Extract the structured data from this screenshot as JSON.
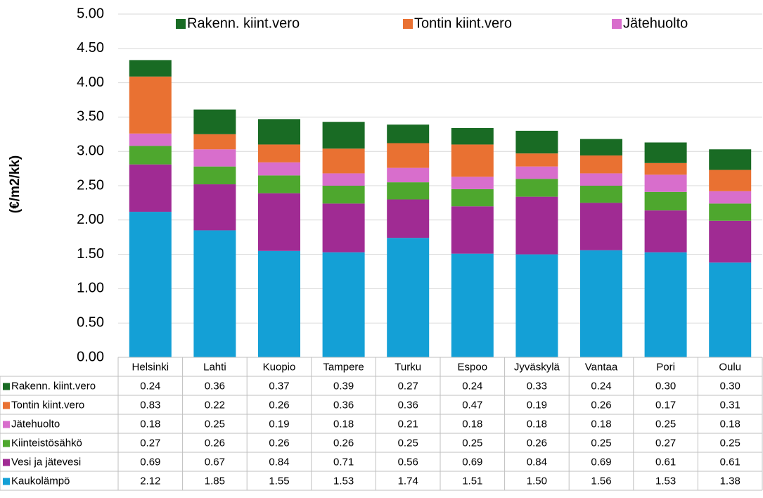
{
  "chart_data": {
    "type": "bar",
    "stacked": true,
    "y_axis_label": "(€/m2/kk)",
    "categories": [
      "Helsinki",
      "Lahti",
      "Kuopio",
      "Tampere",
      "Turku",
      "Espoo",
      "Jyväskylä",
      "Vantaa",
      "Pori",
      "Oulu"
    ],
    "series": [
      {
        "name": "Kaukolämpö",
        "color": "#14a0d6",
        "values": [
          2.12,
          1.85,
          1.55,
          1.53,
          1.74,
          1.51,
          1.5,
          1.56,
          1.53,
          1.38
        ],
        "value_labels": [
          "2.12",
          "1.85",
          "1.55",
          "1.53",
          "1.74",
          "1.51",
          "1.50",
          "1.56",
          "1.53",
          "1.38"
        ]
      },
      {
        "name": "Vesi ja jätevesi",
        "color": "#a02b93",
        "values": [
          0.69,
          0.67,
          0.84,
          0.71,
          0.56,
          0.69,
          0.84,
          0.69,
          0.61,
          0.61
        ],
        "value_labels": [
          "0.69",
          "0.67",
          "0.84",
          "0.71",
          "0.56",
          "0.69",
          "0.84",
          "0.69",
          "0.61",
          "0.61"
        ]
      },
      {
        "name": "Kiinteistösähkö",
        "color": "#4ea72e",
        "values": [
          0.27,
          0.26,
          0.26,
          0.26,
          0.25,
          0.25,
          0.26,
          0.25,
          0.27,
          0.25
        ],
        "value_labels": [
          "0.27",
          "0.26",
          "0.26",
          "0.26",
          "0.25",
          "0.25",
          "0.26",
          "0.25",
          "0.27",
          "0.25"
        ]
      },
      {
        "name": "Jätehuolto",
        "color": "#d86ecc",
        "values": [
          0.18,
          0.25,
          0.19,
          0.18,
          0.21,
          0.18,
          0.18,
          0.18,
          0.25,
          0.18
        ],
        "value_labels": [
          "0.18",
          "0.25",
          "0.19",
          "0.18",
          "0.21",
          "0.18",
          "0.18",
          "0.18",
          "0.25",
          "0.18"
        ]
      },
      {
        "name": "Tontin kiint.vero",
        "color": "#e97132",
        "values": [
          0.83,
          0.22,
          0.26,
          0.36,
          0.36,
          0.47,
          0.19,
          0.26,
          0.17,
          0.31
        ],
        "value_labels": [
          "0.83",
          "0.22",
          "0.26",
          "0.36",
          "0.36",
          "0.47",
          "0.19",
          "0.26",
          "0.17",
          "0.31"
        ]
      },
      {
        "name": "Rakenn. kiint.vero",
        "color": "#196b24",
        "values": [
          0.24,
          0.36,
          0.37,
          0.39,
          0.27,
          0.24,
          0.33,
          0.24,
          0.3,
          0.3
        ],
        "value_labels": [
          "0.24",
          "0.36",
          "0.37",
          "0.39",
          "0.27",
          "0.24",
          "0.33",
          "0.24",
          "0.30",
          "0.30"
        ]
      }
    ],
    "ylim": [
      0,
      5
    ],
    "yticks": [
      {
        "value": 0,
        "label": "0.00"
      },
      {
        "value": 0.5,
        "label": "0.50"
      },
      {
        "value": 1,
        "label": "1.00"
      },
      {
        "value": 1.5,
        "label": "1.50"
      },
      {
        "value": 2,
        "label": "2.00"
      },
      {
        "value": 2.5,
        "label": "2.50"
      },
      {
        "value": 3,
        "label": "3.00"
      },
      {
        "value": 3.5,
        "label": "3.50"
      },
      {
        "value": 4,
        "label": "4.00"
      },
      {
        "value": 4.5,
        "label": "4.50"
      },
      {
        "value": 5,
        "label": "5.00"
      }
    ],
    "grid": true,
    "legend": "top"
  }
}
